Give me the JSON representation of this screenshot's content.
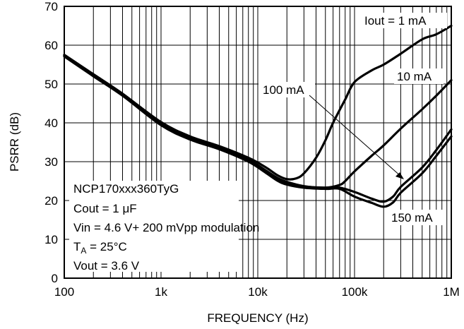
{
  "chart_data": {
    "type": "line",
    "title": "",
    "xlabel": "FREQUENCY (Hz)",
    "ylabel": "PSRR (dB)",
    "xscale": "log",
    "xlim": [
      100,
      1000000
    ],
    "ylim": [
      0,
      70
    ],
    "grid": true,
    "x_ticks": [
      {
        "value": 100,
        "label": "100"
      },
      {
        "value": 1000,
        "label": "1k"
      },
      {
        "value": 10000,
        "label": "10k"
      },
      {
        "value": 100000,
        "label": "100k"
      },
      {
        "value": 1000000,
        "label": "1M"
      }
    ],
    "y_ticks": [
      0,
      10,
      20,
      30,
      40,
      50,
      60,
      70
    ],
    "series": [
      {
        "name": "Iout = 1 mA",
        "x": [
          100,
          200,
          400,
          1000,
          2000,
          4000,
          8000,
          12000,
          16000,
          20000,
          25000,
          30000,
          40000,
          50000,
          60000,
          80000,
          100000,
          150000,
          200000,
          300000,
          500000,
          700000,
          1000000
        ],
        "y": [
          57.5,
          52.5,
          47.5,
          40.2,
          36.5,
          34.0,
          31.0,
          28.6,
          26.5,
          25.5,
          25.7,
          27.0,
          31.0,
          35.5,
          40.0,
          46.0,
          50.5,
          53.5,
          55.0,
          57.8,
          61.5,
          62.8,
          65.0
        ]
      },
      {
        "name": "10 mA",
        "x": [
          100,
          200,
          400,
          1000,
          2000,
          4000,
          8000,
          12000,
          16000,
          20000,
          30000,
          50000,
          70000,
          80000,
          100000,
          150000,
          200000,
          300000,
          500000,
          700000,
          1000000
        ],
        "y": [
          57.5,
          52.5,
          47.5,
          40.0,
          36.3,
          33.8,
          30.5,
          27.8,
          25.8,
          24.8,
          23.7,
          23.3,
          24.0,
          25.0,
          27.5,
          31.5,
          34.2,
          38.5,
          43.5,
          47.0,
          51.0
        ]
      },
      {
        "name": "100 mA",
        "x": [
          100,
          200,
          400,
          1000,
          2000,
          4000,
          8000,
          12000,
          16000,
          20000,
          30000,
          50000,
          70000,
          100000,
          150000,
          200000,
          250000,
          300000,
          500000,
          700000,
          1000000
        ],
        "y": [
          57.3,
          52.2,
          47.2,
          39.7,
          36.0,
          33.5,
          30.2,
          27.5,
          25.4,
          24.4,
          23.6,
          23.3,
          23.3,
          22.2,
          20.5,
          19.7,
          21.0,
          23.5,
          28.5,
          33.0,
          38.3
        ]
      },
      {
        "name": "150 mA",
        "x": [
          100,
          200,
          400,
          1000,
          2000,
          4000,
          8000,
          12000,
          16000,
          20000,
          30000,
          50000,
          70000,
          100000,
          150000,
          200000,
          250000,
          300000,
          500000,
          700000,
          1000000
        ],
        "y": [
          57.1,
          52.0,
          47.0,
          39.4,
          35.7,
          33.2,
          30.0,
          27.2,
          25.1,
          24.1,
          23.3,
          23.0,
          23.0,
          21.0,
          19.4,
          18.4,
          19.5,
          22.0,
          27.0,
          31.5,
          36.5
        ]
      }
    ],
    "annotations": {
      "iout_1ma": "Iout = 1 mA",
      "iout_10ma": "10 mA",
      "iout_100ma": "100 mA",
      "iout_150ma": "150 mA",
      "cond_device": "NCP170xxx360TyG",
      "cond_cout": "Cout = 1 μF",
      "cond_vin": "Vin = 4.6 V+ 200 mVpp modulation",
      "cond_ta_prefix": "T",
      "cond_ta_sub": "A",
      "cond_ta_suffix": " = 25°C",
      "cond_vout": "Vout = 3.6 V"
    }
  }
}
